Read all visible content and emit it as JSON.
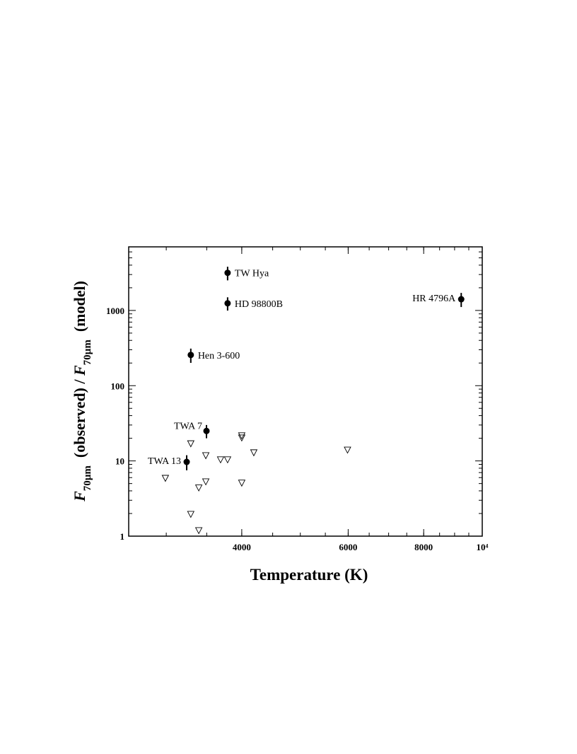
{
  "chart_data": {
    "type": "scatter",
    "xlabel": "Temperature  (K)",
    "ylabel": [
      "F",
      "70µm",
      "  (observed) / ",
      "F",
      "70µm",
      "  (model)"
    ],
    "xscale": "log",
    "yscale": "log",
    "xlim": [
      2600,
      10000
    ],
    "ylim": [
      1,
      7000
    ],
    "xticks": [
      4000,
      6000,
      8000,
      {
        "value": 10000,
        "label": "10⁴"
      }
    ],
    "yticks": [
      1,
      10,
      100,
      1000
    ],
    "series": [
      {
        "marker": "circle",
        "color": "#000000",
        "x": [
          3790,
          3790,
          9230,
          3294,
          3497,
          3243
        ],
        "values": [
          3160,
          1245,
          1410,
          256,
          25,
          9.7
        ],
        "errors": [
          650,
          250,
          300,
          55,
          5,
          2.2
        ],
        "labels": [
          "TW Hya",
          "HD 98800B",
          "HR 4796A",
          "Hen 3-600",
          "TWA 7",
          "TWA 13"
        ],
        "label_positions": [
          "right",
          "right",
          "left",
          "right",
          "above-left",
          "left"
        ]
      },
      {
        "marker": "triangle-down",
        "color": "#000000",
        "x": [
          3294,
          2990,
          3396,
          3488,
          3488,
          3690,
          3790,
          4000,
          4000,
          4000,
          4188,
          5985,
          3294,
          3396
        ],
        "values": [
          17,
          5.9,
          4.4,
          5.3,
          11.8,
          10.4,
          10.4,
          21.7,
          20.3,
          5.1,
          12.9,
          14,
          1.96,
          1.19
        ]
      }
    ]
  }
}
